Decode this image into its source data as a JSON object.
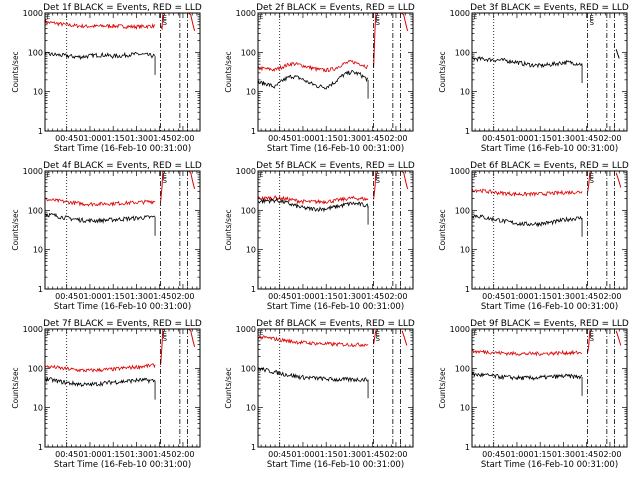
{
  "colors": {
    "events": "#000000",
    "lld": "#dd0000",
    "axis": "#000000",
    "background": "#ffffff"
  },
  "common": {
    "ylabel": "Counts/sec",
    "xlabel": "Start Time (16-Feb-10 00:31:00)",
    "xticks": [
      "00:45",
      "01:00",
      "01:15",
      "01:30",
      "01:45",
      "02:00"
    ],
    "yticks": [
      "1",
      "10",
      "100",
      "1000"
    ],
    "yscale": "log",
    "ylim": [
      1,
      1000
    ],
    "xlim_minutes": [
      0,
      100
    ]
  },
  "chart_data": [
    {
      "type": "line",
      "title": "Det 1f BLACK = Events, RED = LLD",
      "events": [
        90,
        88,
        84,
        80,
        76,
        80,
        85,
        86,
        80,
        82,
        88,
        90,
        86,
        80
      ],
      "lld": [
        580,
        560,
        520,
        490,
        470,
        460,
        460,
        470,
        470,
        460,
        450,
        450,
        460,
        470
      ],
      "dotted_line": 14,
      "dashdot_lines": [
        74.5,
        87,
        92
      ],
      "segment": "spike",
      "second_events": false
    },
    {
      "type": "line",
      "title": "Det 2f BLACK = Events, RED = LLD",
      "events": [
        17,
        16,
        13,
        20,
        25,
        22,
        17,
        14,
        13,
        17,
        26,
        32,
        28,
        20
      ],
      "lld": [
        40,
        38,
        36,
        44,
        52,
        48,
        42,
        37,
        35,
        38,
        50,
        58,
        52,
        42
      ],
      "dotted_line": 14,
      "dashdot_lines": [
        74.5,
        87,
        92
      ],
      "segment": "spike",
      "second_events": false
    },
    {
      "type": "line",
      "title": "Det 3f BLACK = Events, RED = LLD",
      "events": [
        70,
        68,
        66,
        64,
        62,
        58,
        52,
        48,
        46,
        48,
        52,
        56,
        54,
        50
      ],
      "lld": null,
      "dotted_line": 14,
      "dashdot_lines": [
        74.5,
        87,
        92
      ],
      "segment": "none",
      "second_events": false
    },
    {
      "type": "line",
      "title": "Det 4f BLACK = Events, RED = LLD",
      "events": [
        80,
        75,
        68,
        62,
        58,
        55,
        55,
        56,
        58,
        60,
        62,
        64,
        66,
        68
      ],
      "lld": [
        190,
        180,
        170,
        160,
        150,
        145,
        145,
        148,
        150,
        152,
        155,
        160,
        165,
        170
      ],
      "dotted_line": 14,
      "dashdot_lines": [
        74.5,
        87,
        92
      ],
      "segment": "spike",
      "second_events": false
    },
    {
      "type": "line",
      "title": "Det 5f BLACK = Events, RED = LLD",
      "events": [
        170,
        175,
        180,
        165,
        140,
        120,
        110,
        108,
        110,
        120,
        135,
        150,
        145,
        130
      ],
      "lld": [
        200,
        205,
        210,
        200,
        185,
        170,
        165,
        165,
        168,
        175,
        190,
        205,
        200,
        190
      ],
      "dotted_line": 14,
      "dashdot_lines": [
        74.5,
        87,
        92
      ],
      "segment": "spike",
      "second_events": false
    },
    {
      "type": "line",
      "title": "Det 6f BLACK = Events, RED = LLD",
      "events": [
        75,
        70,
        62,
        58,
        52,
        48,
        45,
        45,
        46,
        48,
        52,
        58,
        62,
        64
      ],
      "lld": [
        330,
        320,
        300,
        280,
        270,
        262,
        258,
        260,
        262,
        268,
        275,
        285,
        290,
        295
      ],
      "dotted_line": 14,
      "dashdot_lines": [
        74.5,
        87,
        92
      ],
      "segment": "short",
      "second_events": false
    },
    {
      "type": "line",
      "title": "Det 7f BLACK = Events, RED = LLD",
      "events": [
        55,
        50,
        45,
        42,
        40,
        38,
        40,
        42,
        45,
        46,
        48,
        50,
        50,
        48
      ],
      "lld": [
        110,
        108,
        100,
        95,
        90,
        88,
        90,
        92,
        95,
        100,
        105,
        110,
        115,
        120
      ],
      "dotted_line": 14,
      "dashdot_lines": [
        74.5,
        87,
        92
      ],
      "segment": "spike",
      "second_events": false
    },
    {
      "type": "line",
      "title": "Det 8f BLACK = Events, RED = LLD",
      "events": [
        100,
        90,
        80,
        72,
        66,
        60,
        58,
        56,
        54,
        52,
        52,
        52,
        52,
        52
      ],
      "lld": [
        620,
        600,
        560,
        520,
        480,
        460,
        440,
        430,
        420,
        410,
        405,
        400,
        400,
        410
      ],
      "dotted_line": 14,
      "dashdot_lines": [
        74.5,
        87,
        92
      ],
      "segment": "short",
      "second_events": false
    },
    {
      "type": "line",
      "title": "Det 9f BLACK = Events, RED = LLD",
      "events": [
        70,
        68,
        66,
        62,
        60,
        58,
        57,
        57,
        58,
        60,
        62,
        64,
        62,
        60
      ],
      "lld": [
        270,
        265,
        260,
        250,
        242,
        238,
        236,
        236,
        238,
        240,
        245,
        250,
        248,
        250
      ],
      "dotted_line": 14,
      "dashdot_lines": [
        74.5,
        87,
        92
      ],
      "segment": "short",
      "second_events": false
    }
  ]
}
